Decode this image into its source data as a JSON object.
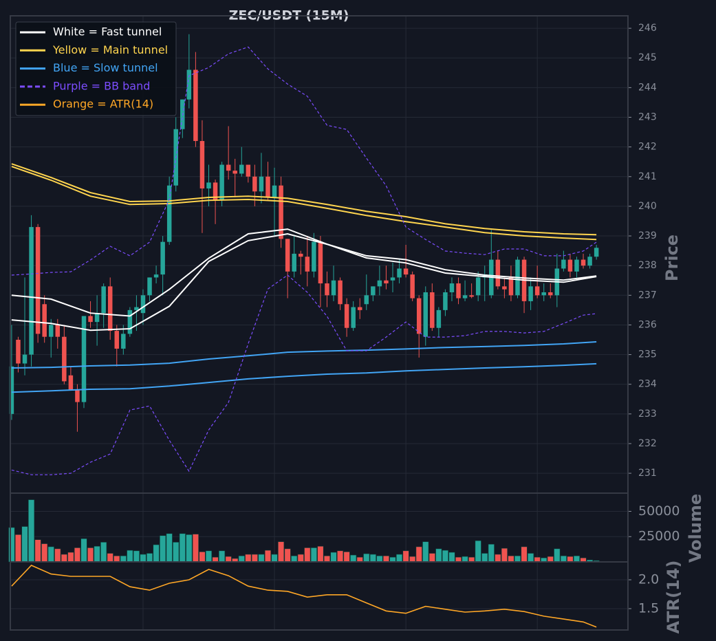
{
  "chart_data": [
    {
      "type": "candlestick",
      "title": "ZEC/USDT (15M)",
      "ylabel": "Price",
      "xlim": [
        -0.2,
        93.8
      ],
      "xticks": [
        20,
        40,
        60,
        80
      ],
      "ylim": [
        230.33,
        246.42
      ],
      "yticks": [
        231,
        232,
        233,
        234,
        235,
        236,
        237,
        238,
        239,
        240,
        241,
        242,
        243,
        244,
        245,
        246
      ],
      "grid": true,
      "legend": "upper left",
      "up_color": "#26a69a",
      "down_color": "#ef5350",
      "open": [
        233.0,
        235.5,
        234.7,
        235.0,
        239.3,
        236.7,
        235.6,
        236.0,
        235.6,
        234.3,
        233.8,
        233.4,
        236.3,
        236.1,
        236.4,
        237.3,
        235.8,
        235.2,
        235.7,
        236.5,
        236.4,
        237.0,
        237.6,
        237.7,
        238.8,
        240.7,
        242.6,
        243.6,
        244.6,
        242.2,
        240.6,
        240.8,
        240.2,
        241.4,
        241.2,
        241.1,
        241.4,
        241.0,
        240.5,
        241.0,
        240.3,
        240.7,
        238.9,
        237.8,
        238.4,
        238.3,
        237.8,
        238.8,
        237.4,
        237.0,
        237.5,
        236.7,
        235.9,
        236.6,
        236.7,
        237.0,
        237.3,
        237.5,
        237.5,
        237.6,
        237.9,
        237.7,
        236.9,
        235.6,
        237.1,
        235.9,
        236.5,
        237.1,
        237.4,
        236.9,
        237.0,
        237.0,
        237.6,
        237.0,
        238.2,
        237.3,
        237.6,
        237.0,
        238.2,
        236.8,
        237.3,
        237.0,
        237.1,
        237.0,
        237.9,
        238.2,
        237.8,
        238.2,
        238.0,
        238.3
      ],
      "high": [
        236.0,
        235.6,
        237.6,
        239.7,
        239.4,
        237.0,
        236.2,
        236.2,
        236.0,
        234.6,
        234.0,
        236.3,
        236.8,
        237.0,
        237.4,
        237.6,
        236.0,
        236.0,
        236.6,
        237.0,
        237.2,
        237.6,
        238.0,
        239.0,
        241.0,
        243.0,
        243.6,
        245.8,
        245.2,
        242.9,
        241.4,
        240.9,
        241.5,
        242.7,
        241.6,
        242.0,
        241.4,
        241.4,
        241.8,
        241.5,
        241.3,
        241.0,
        238.9,
        239.0,
        238.5,
        239.0,
        239.1,
        239.0,
        237.8,
        238.0,
        237.6,
        236.9,
        236.8,
        236.9,
        237.7,
        237.3,
        238.0,
        238.0,
        238.1,
        238.2,
        238.7,
        237.8,
        237.0,
        237.3,
        237.4,
        236.6,
        237.2,
        237.6,
        237.6,
        237.5,
        237.4,
        237.8,
        238.0,
        239.2,
        238.5,
        237.6,
        238.0,
        238.3,
        238.3,
        237.6,
        238.0,
        237.4,
        237.4,
        238.4,
        238.5,
        238.4,
        238.3,
        238.4,
        238.4,
        238.7
      ],
      "low": [
        232.8,
        234.4,
        234.3,
        234.6,
        235.4,
        235.4,
        234.9,
        235.2,
        234.0,
        233.8,
        232.4,
        233.2,
        235.9,
        235.3,
        235.9,
        235.5,
        234.6,
        235.0,
        235.6,
        235.8,
        236.0,
        236.8,
        237.4,
        237.0,
        238.7,
        240.5,
        242.3,
        243.3,
        242.0,
        239.1,
        240.0,
        239.4,
        240.0,
        240.9,
        240.3,
        241.0,
        240.8,
        240.0,
        240.1,
        240.2,
        239.0,
        238.6,
        236.9,
        237.6,
        237.7,
        237.3,
        237.6,
        236.6,
        236.6,
        236.8,
        236.5,
        235.6,
        235.8,
        236.2,
        236.5,
        236.8,
        237.0,
        237.2,
        237.1,
        237.4,
        237.6,
        236.8,
        234.9,
        235.3,
        235.8,
        235.6,
        236.3,
        236.8,
        236.7,
        236.8,
        236.9,
        236.8,
        236.8,
        236.9,
        237.2,
        236.9,
        236.8,
        236.9,
        236.4,
        236.5,
        236.9,
        236.8,
        236.9,
        236.6,
        237.8,
        237.6,
        237.6,
        237.9,
        237.9,
        238.2
      ],
      "close": [
        234.6,
        234.7,
        235.0,
        239.3,
        235.7,
        235.6,
        236.0,
        235.6,
        234.1,
        233.8,
        233.4,
        236.3,
        236.1,
        236.4,
        237.3,
        235.8,
        235.2,
        235.7,
        236.5,
        236.6,
        237.0,
        237.6,
        237.7,
        238.8,
        240.7,
        242.6,
        243.6,
        244.6,
        242.2,
        240.6,
        240.8,
        240.2,
        241.4,
        241.2,
        241.1,
        241.4,
        241.0,
        240.5,
        241.0,
        240.3,
        240.7,
        238.9,
        237.8,
        238.4,
        238.3,
        237.8,
        238.8,
        237.4,
        237.0,
        237.5,
        236.7,
        235.9,
        236.6,
        236.5,
        237.0,
        237.3,
        237.5,
        237.4,
        237.6,
        237.9,
        237.7,
        236.9,
        235.7,
        237.1,
        235.9,
        236.5,
        237.1,
        237.4,
        236.9,
        237.0,
        236.95,
        237.6,
        237.7,
        238.2,
        237.3,
        237.2,
        237.0,
        238.2,
        236.8,
        237.3,
        237.0,
        237.1,
        237.0,
        237.9,
        238.2,
        237.8,
        238.2,
        238.0,
        238.3,
        238.6
      ],
      "series": [
        {
          "name": "White = Fast tunnel",
          "color": "#ffffff",
          "dashed": false,
          "x": [
            0,
            6,
            12,
            18,
            24,
            30,
            36,
            42,
            48,
            54,
            60,
            66,
            72,
            78,
            84,
            89
          ],
          "upper": [
            237.0,
            236.87,
            236.4,
            236.3,
            237.2,
            238.25,
            239.07,
            239.23,
            238.72,
            238.33,
            238.2,
            237.86,
            237.68,
            237.58,
            237.51,
            237.65
          ],
          "lower": [
            236.17,
            236.05,
            235.82,
            235.87,
            236.63,
            238.14,
            238.84,
            239.07,
            238.72,
            238.26,
            238.09,
            237.75,
            237.63,
            237.51,
            237.44,
            237.63
          ]
        },
        {
          "name": "Yellow = Main tunnel",
          "color": "#ffd54f",
          "dashed": false,
          "x": [
            0,
            6,
            12,
            18,
            24,
            30,
            36,
            42,
            48,
            54,
            60,
            66,
            72,
            78,
            84,
            89
          ],
          "upper": [
            241.43,
            240.97,
            240.46,
            240.16,
            240.18,
            240.3,
            240.34,
            240.27,
            240.06,
            239.83,
            239.65,
            239.41,
            239.25,
            239.14,
            239.07,
            239.04
          ],
          "lower": [
            241.34,
            240.88,
            240.34,
            240.06,
            240.09,
            240.2,
            240.23,
            240.16,
            239.93,
            239.69,
            239.48,
            239.3,
            239.11,
            239.0,
            238.93,
            238.88
          ]
        },
        {
          "name": "Blue = Slow tunnel",
          "color": "#42a5f5",
          "dashed": false,
          "x": [
            0,
            6,
            12,
            18,
            24,
            30,
            36,
            42,
            48,
            54,
            60,
            66,
            72,
            78,
            84,
            89
          ],
          "upper": [
            234.55,
            234.57,
            234.62,
            234.65,
            234.71,
            234.85,
            234.96,
            235.08,
            235.12,
            235.15,
            235.19,
            235.24,
            235.27,
            235.31,
            235.36,
            235.43
          ],
          "lower": [
            233.73,
            233.78,
            233.83,
            233.85,
            233.94,
            234.06,
            234.18,
            234.27,
            234.34,
            234.38,
            234.45,
            234.5,
            234.55,
            234.59,
            234.64,
            234.69
          ]
        },
        {
          "name": "Purple = BB band",
          "color": "#7c4dff",
          "dashed": true,
          "x": [
            0,
            3,
            6,
            9,
            12,
            15,
            18,
            21,
            24,
            27,
            30,
            33,
            36,
            39,
            42,
            45,
            48,
            51,
            54,
            57,
            60,
            63,
            66,
            69,
            72,
            75,
            78,
            81,
            84,
            87,
            89
          ],
          "upper": [
            237.68,
            237.72,
            237.77,
            237.79,
            238.19,
            238.65,
            238.33,
            238.79,
            240.23,
            244.4,
            244.68,
            245.14,
            245.37,
            244.63,
            244.12,
            243.71,
            242.73,
            242.59,
            241.62,
            240.69,
            239.3,
            238.88,
            238.49,
            238.42,
            238.37,
            238.56,
            238.56,
            238.33,
            238.33,
            238.49,
            238.79
          ],
          "lower": [
            231.11,
            230.95,
            230.95,
            231.0,
            231.37,
            231.65,
            233.13,
            233.27,
            232.11,
            231.07,
            232.46,
            233.39,
            235.36,
            237.21,
            237.68,
            237.1,
            236.29,
            235.13,
            235.13,
            235.59,
            236.1,
            235.59,
            235.59,
            235.64,
            235.78,
            235.78,
            235.73,
            235.78,
            236.05,
            236.33,
            236.38
          ]
        }
      ]
    },
    {
      "type": "bar",
      "ylabel": "Volume",
      "xlim": [
        -0.2,
        93.8
      ],
      "xticks": [
        20,
        40,
        60,
        80
      ],
      "ylim": [
        0,
        68000
      ],
      "yticks": [
        25000,
        50000
      ],
      "grid": true,
      "values": [
        34000,
        27000,
        35000,
        61500,
        22000,
        18000,
        15000,
        13000,
        7500,
        9500,
        14000,
        23000,
        14000,
        15500,
        19500,
        8500,
        6000,
        6000,
        11500,
        11000,
        7500,
        8500,
        17000,
        26000,
        28000,
        19500,
        28000,
        27000,
        27500,
        10000,
        11000,
        4700,
        11000,
        5400,
        3400,
        6000,
        7500,
        7500,
        7500,
        11500,
        7500,
        20000,
        13000,
        6000,
        7500,
        14000,
        14000,
        15500,
        6000,
        9500,
        11000,
        10000,
        6800,
        4700,
        8100,
        7500,
        6000,
        6000,
        4700,
        7500,
        11000,
        5400,
        15000,
        20000,
        8500,
        13000,
        11500,
        9500,
        4700,
        5400,
        4700,
        21000,
        8500,
        17500,
        7500,
        13500,
        6000,
        6000,
        15000,
        8500,
        4700,
        4000,
        5400,
        13000,
        6000,
        5400,
        6000,
        4000,
        2000,
        1300
      ]
    },
    {
      "type": "line",
      "ylabel": "ATR(14)",
      "xlim": [
        -0.2,
        93.8
      ],
      "xticks": [
        20,
        40,
        60,
        80
      ],
      "ylim": [
        1.13,
        2.31
      ],
      "yticks": [
        {
          "value": 2.0,
          "label": "2.0"
        },
        1.5
      ],
      "grid": true,
      "series": [
        {
          "name": "Orange = ATR(14)",
          "color": "#ffa726",
          "x": [
            0,
            3,
            6,
            9,
            12,
            15,
            18,
            21,
            24,
            27,
            30,
            33,
            36,
            39,
            42,
            45,
            48,
            51,
            54,
            57,
            60,
            63,
            66,
            69,
            72,
            75,
            78,
            81,
            84,
            87,
            89
          ],
          "values": [
            1.89,
            2.25,
            2.1,
            2.06,
            2.06,
            2.06,
            1.88,
            1.82,
            1.94,
            2.0,
            2.18,
            2.07,
            1.89,
            1.82,
            1.8,
            1.7,
            1.74,
            1.74,
            1.6,
            1.46,
            1.42,
            1.54,
            1.49,
            1.44,
            1.46,
            1.49,
            1.45,
            1.37,
            1.32,
            1.27,
            1.18
          ]
        }
      ]
    }
  ]
}
